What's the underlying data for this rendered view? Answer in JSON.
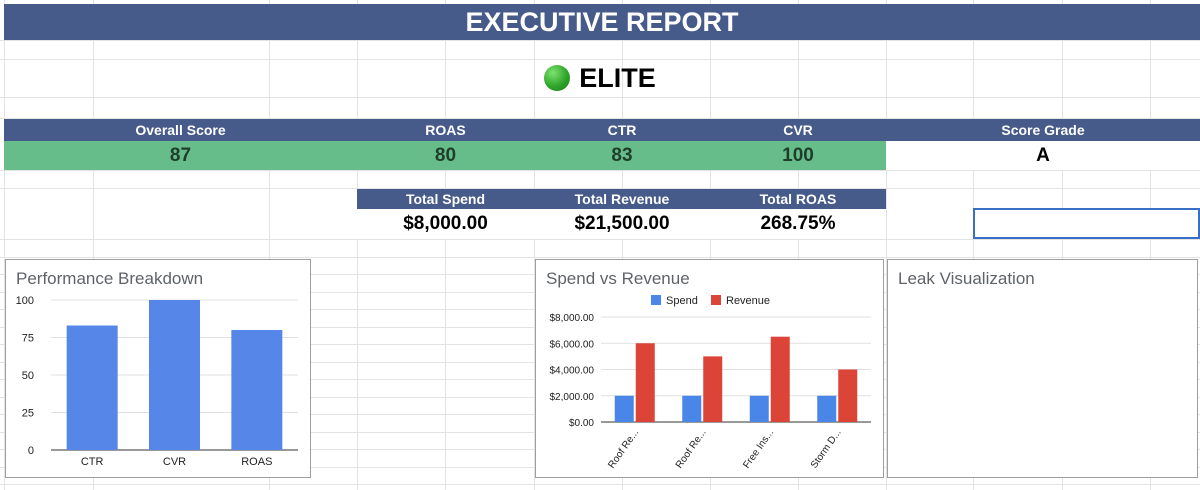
{
  "report": {
    "title": "EXECUTIVE REPORT",
    "status_label": "ELITE",
    "status_icon": "green-circle-icon"
  },
  "scores": {
    "headers": [
      "Overall Score",
      "ROAS",
      "CTR",
      "CVR",
      "Score Grade"
    ],
    "values": [
      "87",
      "80",
      "83",
      "100",
      "A"
    ]
  },
  "totals": {
    "headers": [
      "Total Spend",
      "Total Revenue",
      "Total ROAS"
    ],
    "values": [
      "$8,000.00",
      "$21,500.00",
      "268.75%"
    ]
  },
  "colors": {
    "header_bg": "#475b8a",
    "score_bg": "#67bd8a",
    "spend": "#4a86e8",
    "revenue": "#db4437",
    "bar": "#5687e8"
  },
  "chart_data": [
    {
      "type": "bar",
      "title": "Performance Breakdown",
      "categories": [
        "CTR",
        "CVR",
        "ROAS"
      ],
      "values": [
        83,
        100,
        80
      ],
      "yticks": [
        "0",
        "25",
        "50",
        "75",
        "100"
      ],
      "ylim": [
        0,
        100
      ],
      "grid": true
    },
    {
      "type": "bar",
      "title": "Spend vs Revenue",
      "categories": [
        "Roof Re...",
        "Roof Re...",
        "Free Ins...",
        "Storm D..."
      ],
      "series": [
        {
          "name": "Spend",
          "values": [
            2000,
            2000,
            2000,
            2000
          ]
        },
        {
          "name": "Revenue",
          "values": [
            6000,
            5000,
            6500,
            4000
          ]
        }
      ],
      "yticks": [
        "$0.00",
        "$2,000.00",
        "$4,000.00",
        "$6,000.00",
        "$8,000.00"
      ],
      "ylim": [
        0,
        8000
      ],
      "legend": "top",
      "grid": true
    },
    {
      "type": "bar",
      "title": "Leak Visualization"
    }
  ]
}
